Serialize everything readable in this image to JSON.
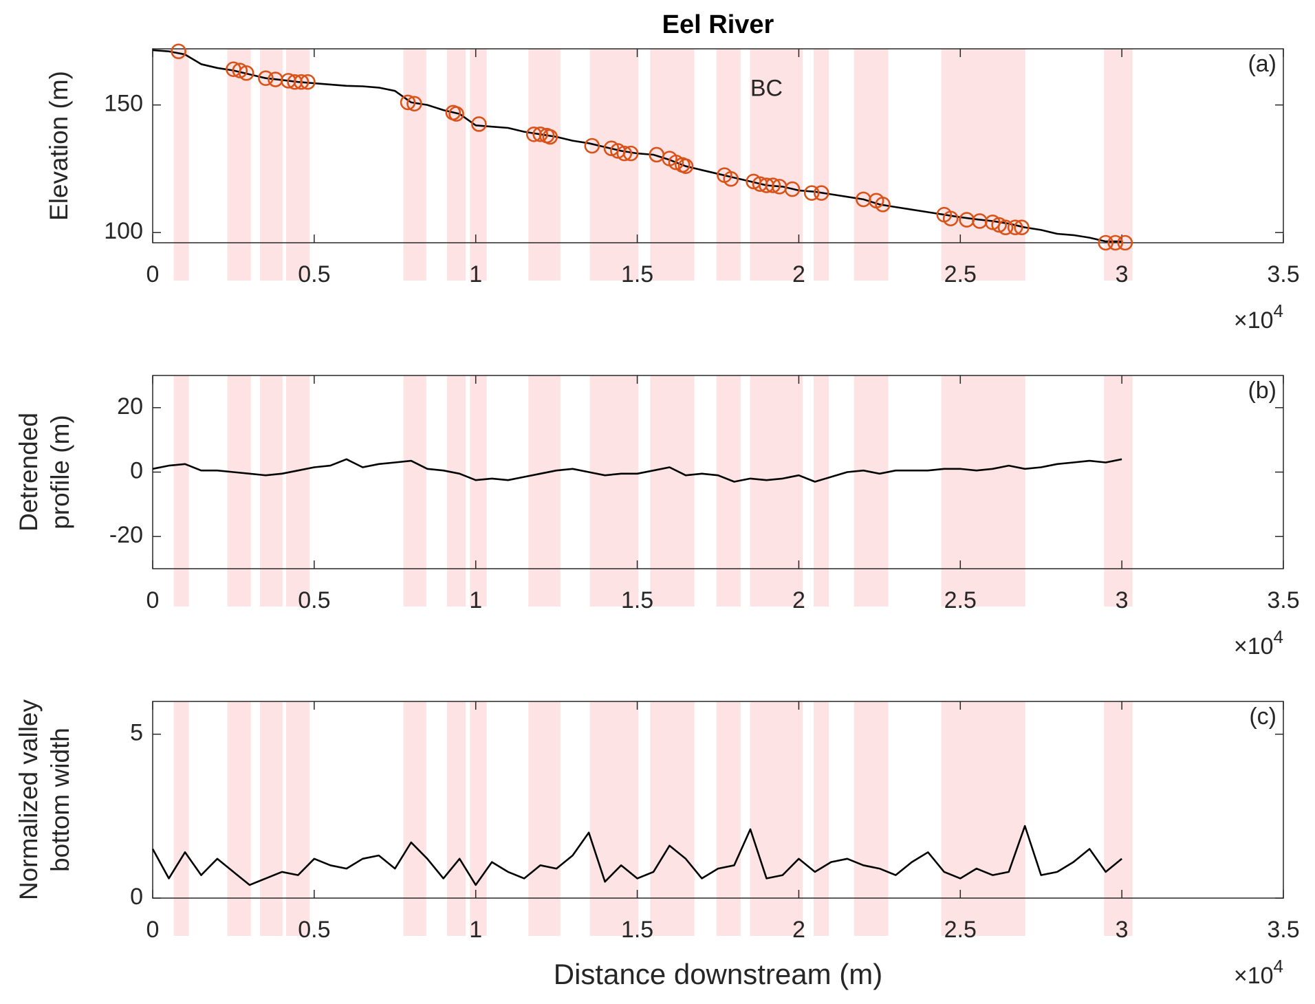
{
  "title": "Eel River",
  "x_label": "Distance downstream (m)",
  "shaded_intervals": [
    [
      0.065,
      0.112
    ],
    [
      0.231,
      0.304
    ],
    [
      0.332,
      0.402
    ],
    [
      0.413,
      0.486
    ],
    [
      0.776,
      0.847
    ],
    [
      0.911,
      0.969
    ],
    [
      0.982,
      1.034
    ],
    [
      1.163,
      1.262
    ],
    [
      1.353,
      1.504
    ],
    [
      1.54,
      1.677
    ],
    [
      1.745,
      1.82
    ],
    [
      1.849,
      2.012
    ],
    [
      2.046,
      2.093
    ],
    [
      2.171,
      2.277
    ],
    [
      2.441,
      2.701
    ],
    [
      2.945,
      3.033
    ]
  ],
  "chart_data": [
    {
      "type": "line",
      "panel_label": "(a)",
      "ylabel": [
        "Elevation (m)"
      ],
      "annotation": {
        "text": "BC",
        "x": 1.9,
        "y": 156
      },
      "xlim": [
        0,
        3.5
      ],
      "xticks": [
        0,
        0.5,
        1,
        1.5,
        2,
        2.5,
        3,
        3.5
      ],
      "x_scale": "×10",
      "x_scale_exponent": "4",
      "ylim": [
        96,
        172
      ],
      "yticks": [
        100,
        150
      ],
      "line": {
        "color": "#000000",
        "x": [
          0,
          0.05,
          0.1,
          0.15,
          0.2,
          0.25,
          0.3,
          0.35,
          0.4,
          0.45,
          0.5,
          0.55,
          0.6,
          0.65,
          0.7,
          0.75,
          0.8,
          0.85,
          0.9,
          0.95,
          1,
          1.05,
          1.1,
          1.15,
          1.2,
          1.25,
          1.3,
          1.35,
          1.4,
          1.45,
          1.5,
          1.55,
          1.6,
          1.65,
          1.7,
          1.75,
          1.8,
          1.85,
          1.9,
          1.95,
          2,
          2.05,
          2.1,
          2.15,
          2.2,
          2.25,
          2.3,
          2.35,
          2.4,
          2.45,
          2.5,
          2.55,
          2.6,
          2.65,
          2.7,
          2.75,
          2.8,
          2.85,
          2.9,
          2.95,
          3
        ],
        "values": [
          171.5,
          171,
          169.8,
          166,
          164.5,
          163.5,
          162,
          160.5,
          159.8,
          159,
          158.5,
          158,
          157.5,
          157.3,
          156.8,
          155.5,
          151,
          150,
          148,
          146.5,
          142,
          141.5,
          141,
          139.5,
          138.5,
          137.5,
          136,
          135,
          133.5,
          132,
          131,
          130.5,
          128.5,
          126,
          124.5,
          123,
          121.5,
          120,
          118.5,
          118,
          116.5,
          116,
          115,
          114,
          113,
          111,
          110,
          109,
          108,
          107,
          106,
          105.2,
          104.5,
          103.5,
          102,
          101,
          99.5,
          99,
          98,
          96.5,
          96.5
        ]
      },
      "markers": {
        "color": "#d95319",
        "x": [
          0.08,
          0.25,
          0.27,
          0.29,
          0.35,
          0.38,
          0.42,
          0.44,
          0.46,
          0.48,
          0.79,
          0.81,
          0.93,
          0.94,
          1.01,
          1.18,
          1.2,
          1.22,
          1.23,
          1.36,
          1.42,
          1.44,
          1.46,
          1.48,
          1.56,
          1.6,
          1.62,
          1.64,
          1.65,
          1.77,
          1.79,
          1.86,
          1.88,
          1.9,
          1.92,
          1.94,
          1.98,
          2.04,
          2.07,
          2.2,
          2.24,
          2.26,
          2.45,
          2.47,
          2.52,
          2.56,
          2.6,
          2.62,
          2.64,
          2.67,
          2.69,
          2.95,
          2.98,
          3.01
        ],
        "values": [
          171,
          164,
          163.5,
          162.5,
          160.5,
          160,
          159.5,
          159,
          159,
          159,
          151,
          150.5,
          147,
          146.5,
          142.5,
          138.5,
          138.5,
          138,
          137.5,
          134,
          133,
          132,
          131,
          131,
          130.5,
          129,
          127.5,
          126.5,
          126,
          122.5,
          121,
          120,
          119,
          118.5,
          118.5,
          118,
          117,
          115.5,
          115.5,
          113,
          112.5,
          111,
          107,
          105.5,
          105,
          104.5,
          104,
          103,
          102,
          102,
          102,
          96,
          96,
          96
        ]
      }
    },
    {
      "type": "line",
      "panel_label": "(b)",
      "ylabel": [
        "Detrended",
        "profile (m)"
      ],
      "xlim": [
        0,
        3.5
      ],
      "xticks": [
        0,
        0.5,
        1,
        1.5,
        2,
        2.5,
        3,
        3.5
      ],
      "x_scale": "×10",
      "x_scale_exponent": "4",
      "ylim": [
        -30,
        30
      ],
      "yticks": [
        -20,
        0,
        20
      ],
      "line": {
        "color": "#000000",
        "x": [
          0,
          0.05,
          0.1,
          0.15,
          0.2,
          0.25,
          0.3,
          0.35,
          0.4,
          0.45,
          0.5,
          0.55,
          0.6,
          0.65,
          0.7,
          0.75,
          0.8,
          0.85,
          0.9,
          0.95,
          1,
          1.05,
          1.1,
          1.15,
          1.2,
          1.25,
          1.3,
          1.35,
          1.4,
          1.45,
          1.5,
          1.55,
          1.6,
          1.65,
          1.7,
          1.75,
          1.8,
          1.85,
          1.9,
          1.95,
          2,
          2.05,
          2.1,
          2.15,
          2.2,
          2.25,
          2.3,
          2.35,
          2.4,
          2.45,
          2.5,
          2.55,
          2.6,
          2.65,
          2.7,
          2.75,
          2.8,
          2.85,
          2.9,
          2.95,
          3
        ],
        "values": [
          1,
          2,
          2.5,
          0.5,
          0.5,
          0,
          -0.5,
          -1,
          -0.5,
          0.5,
          1.5,
          2,
          4,
          1.5,
          2.5,
          3,
          3.5,
          1,
          0.5,
          -0.5,
          -2.5,
          -2,
          -2.5,
          -1.5,
          -0.5,
          0.5,
          1,
          0,
          -1,
          -0.5,
          -0.5,
          0.5,
          1.5,
          -1,
          -0.5,
          -1,
          -3,
          -2,
          -2.5,
          -2,
          -1,
          -3,
          -1.5,
          0,
          0.5,
          -0.5,
          0.5,
          0.5,
          0.5,
          1,
          1,
          0.5,
          1,
          2,
          1,
          1.5,
          2.5,
          3,
          3.5,
          3,
          4
        ]
      }
    },
    {
      "type": "line",
      "panel_label": "(c)",
      "ylabel": [
        "Normalized valley",
        "bottom width"
      ],
      "xlim": [
        0,
        3.5
      ],
      "xticks": [
        0,
        0.5,
        1,
        1.5,
        2,
        2.5,
        3,
        3.5
      ],
      "x_scale": "×10",
      "x_scale_exponent": "4",
      "ylim": [
        0,
        6
      ],
      "yticks": [
        0,
        5
      ],
      "line": {
        "color": "#000000",
        "x": [
          0,
          0.05,
          0.1,
          0.15,
          0.2,
          0.25,
          0.3,
          0.35,
          0.4,
          0.45,
          0.5,
          0.55,
          0.6,
          0.65,
          0.7,
          0.75,
          0.8,
          0.85,
          0.9,
          0.95,
          1,
          1.05,
          1.1,
          1.15,
          1.2,
          1.25,
          1.3,
          1.35,
          1.4,
          1.45,
          1.5,
          1.55,
          1.6,
          1.65,
          1.7,
          1.75,
          1.8,
          1.85,
          1.9,
          1.95,
          2,
          2.05,
          2.1,
          2.15,
          2.2,
          2.25,
          2.3,
          2.35,
          2.4,
          2.45,
          2.5,
          2.55,
          2.6,
          2.65,
          2.7,
          2.75,
          2.8,
          2.85,
          2.9,
          2.95,
          3
        ],
        "values": [
          1.5,
          0.6,
          1.4,
          0.7,
          1.2,
          0.8,
          0.4,
          0.6,
          0.8,
          0.7,
          1.2,
          1.0,
          0.9,
          1.2,
          1.3,
          0.9,
          1.7,
          1.2,
          0.6,
          1.2,
          0.4,
          1.1,
          0.8,
          0.6,
          1.0,
          0.9,
          1.3,
          2.0,
          0.5,
          1.0,
          0.6,
          0.8,
          1.6,
          1.2,
          0.6,
          0.9,
          1.0,
          2.1,
          0.6,
          0.7,
          1.2,
          0.8,
          1.1,
          1.2,
          1.0,
          0.9,
          0.7,
          1.1,
          1.4,
          0.8,
          0.6,
          0.9,
          0.7,
          0.8,
          2.2,
          0.7,
          0.8,
          1.1,
          1.5,
          0.8,
          1.2
        ]
      }
    }
  ]
}
